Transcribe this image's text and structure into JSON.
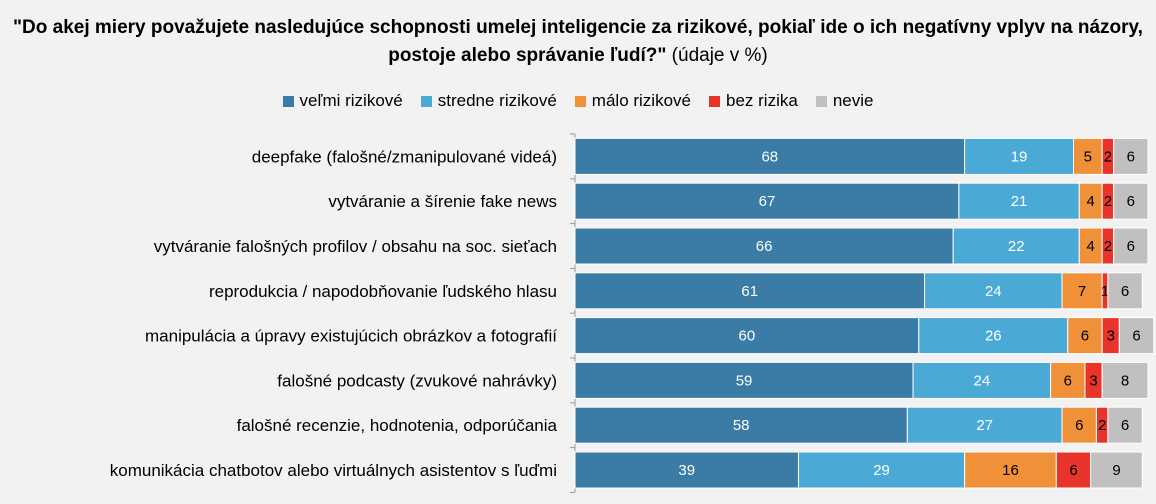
{
  "chart_data": {
    "type": "bar",
    "orientation": "horizontal",
    "stacked": true,
    "title_bold": "\"Do akej miery považujete nasledujúce schopnosti umelej inteligencie za rizikové, pokiaľ ide o ich negatívny vplyv na názory, postoje alebo správanie ľudí?\"",
    "title_rest": " (údaje v %)",
    "categories": [
      "deepfake (falošné/zmanipulované videá)",
      "vytváranie a šírenie fake news",
      "vytváranie falošných profilov / obsahu na soc. sieťach",
      "reprodukcia / napodobňovanie ľudského hlasu",
      "manipulácia a úpravy existujúcich obrázkov a fotografií",
      "falošné podcasty (zvukové nahrávky)",
      "falošné recenzie, hodnotenia, odporúčania",
      "komunikácia chatbotov alebo virtuálnych asistentov s ľuďmi"
    ],
    "series": [
      {
        "name": "veľmi rizikové",
        "color": "#3a7ca5",
        "values": [
          68,
          67,
          66,
          61,
          60,
          59,
          58,
          39
        ]
      },
      {
        "name": "stredne rizikové",
        "color": "#4ba9d6",
        "values": [
          19,
          21,
          22,
          24,
          26,
          24,
          27,
          29
        ]
      },
      {
        "name": "málo rizikové",
        "color": "#f0913a",
        "values": [
          5,
          4,
          4,
          7,
          6,
          6,
          6,
          16
        ]
      },
      {
        "name": "bez rizika",
        "color": "#e8342a",
        "values": [
          2,
          2,
          2,
          1,
          3,
          3,
          2,
          6
        ]
      },
      {
        "name": "nevie",
        "color": "#c0c0c0",
        "values": [
          6,
          6,
          6,
          6,
          6,
          8,
          6,
          9
        ]
      }
    ],
    "xlim": [
      0,
      100
    ],
    "legend_position": "top-center",
    "grid": false
  }
}
